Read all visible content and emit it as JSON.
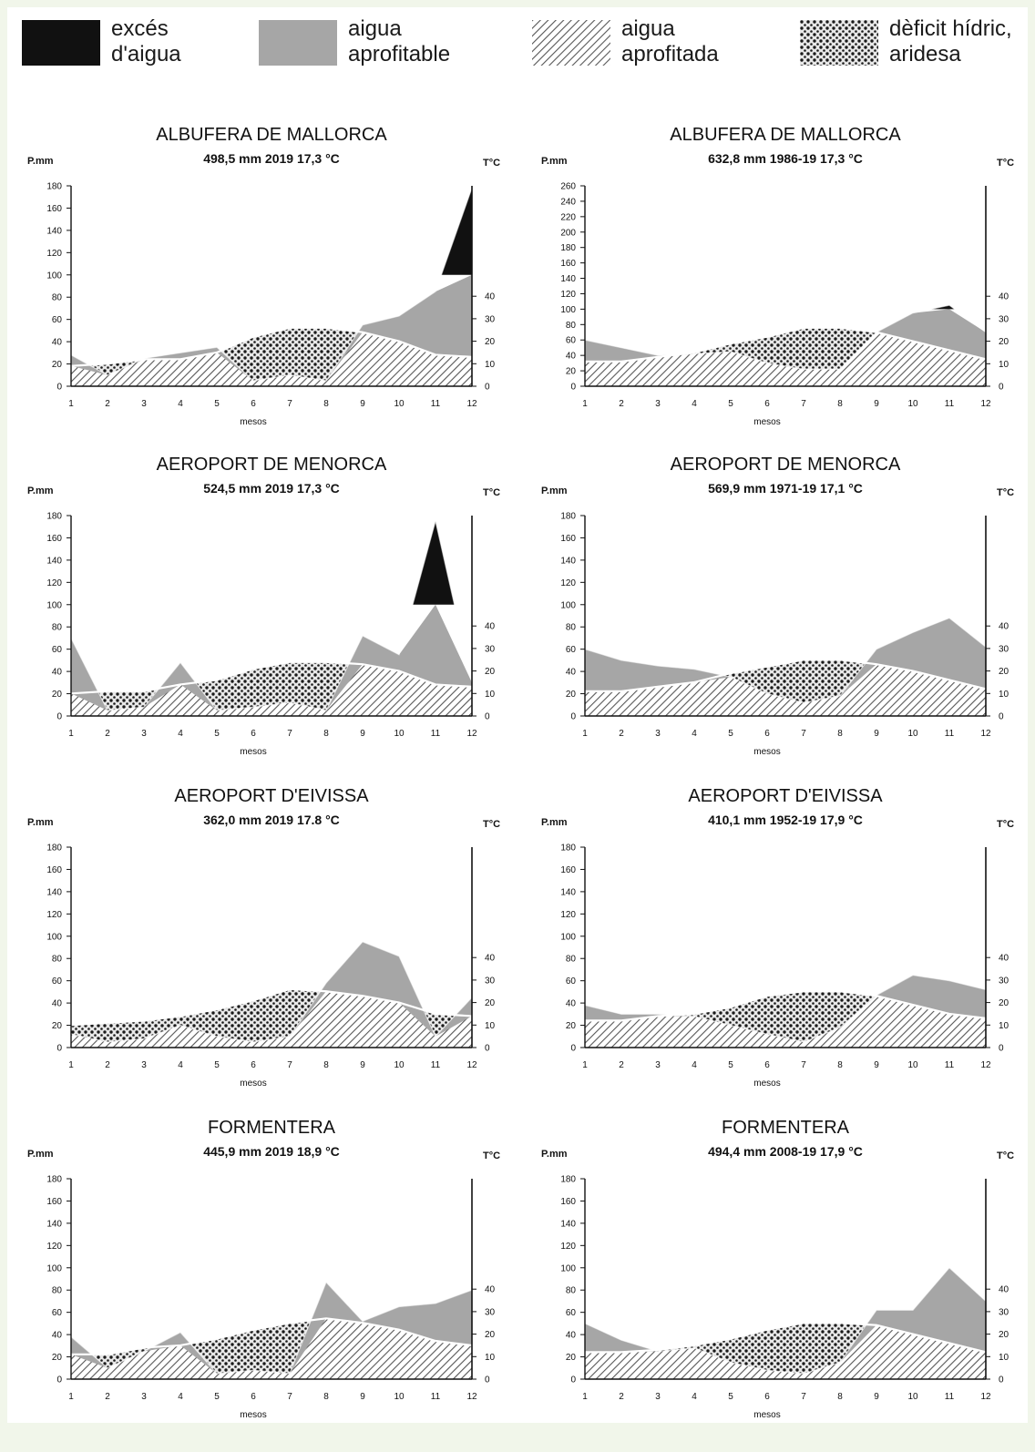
{
  "legend": [
    {
      "id": "exces",
      "line1": "excés",
      "line2": "d'aigua",
      "fill": "#111111"
    },
    {
      "id": "aprofitable",
      "line1": "aigua",
      "line2": "aprofitable",
      "fill": "#a6a6a6"
    },
    {
      "id": "aprofitada",
      "line1": "aigua",
      "line2": "aprofitada",
      "fill": "hatch"
    },
    {
      "id": "deficit",
      "line1": "dèficit hídric,",
      "line2": "aridesa",
      "fill": "dots"
    }
  ],
  "common": {
    "p_label": "P.mm",
    "t_label": "T°C",
    "x_label": "mesos",
    "months": [
      1,
      2,
      3,
      4,
      5,
      6,
      7,
      8,
      9,
      10,
      11,
      12
    ],
    "t_ticks": [
      0,
      10,
      20,
      30,
      40
    ]
  },
  "colors": {
    "exces": "#111111",
    "aprofitable": "#a6a6a6",
    "hatch_line": "#555555",
    "deficit_dot": "#1a1a1a",
    "temperature_line": "#ffffff"
  },
  "chart_data": [
    {
      "type": "area",
      "title": "ALBUFERA DE MALLORCA",
      "subtitle": "498,5 mm 2019  17,3 °C",
      "ylabel": "P.mm",
      "y2label": "T°C",
      "xlabel": "mesos",
      "ylim": [
        0,
        180
      ],
      "yticks": [
        0,
        20,
        40,
        60,
        80,
        100,
        120,
        140,
        160,
        180
      ],
      "series": [
        {
          "name": "P",
          "values": [
            28,
            10,
            25,
            30,
            35,
            5,
            10,
            5,
            55,
            63,
            85,
            178
          ]
        },
        {
          "name": "T",
          "values": [
            9,
            10,
            12,
            12,
            15,
            22,
            26,
            26,
            24,
            20,
            14,
            13
          ]
        }
      ],
      "reserve_max": 100
    },
    {
      "type": "area",
      "title": "ALBUFERA DE MALLORCA",
      "subtitle": "632,8 mm 1986-19  17,3 °C",
      "ylabel": "P.mm",
      "y2label": "T°C",
      "xlabel": "mesos",
      "ylim": [
        0,
        260
      ],
      "yticks": [
        0,
        20,
        40,
        60,
        80,
        100,
        120,
        140,
        160,
        180,
        200,
        220,
        240,
        260
      ],
      "series": [
        {
          "name": "P",
          "values": [
            60,
            50,
            40,
            42,
            45,
            30,
            22,
            22,
            70,
            95,
            105,
            70
          ]
        },
        {
          "name": "T",
          "values": [
            11,
            11,
            13,
            15,
            19,
            22,
            26,
            26,
            24,
            20,
            16,
            12
          ]
        }
      ],
      "reserve_max": 100
    },
    {
      "type": "area",
      "title": "AEROPORT DE MENORCA",
      "subtitle": "524,5 mm 2019  17,3 °C",
      "ylabel": "P.mm",
      "y2label": "T°C",
      "xlabel": "mesos",
      "ylim": [
        0,
        180
      ],
      "yticks": [
        0,
        20,
        40,
        60,
        80,
        100,
        120,
        140,
        160,
        180
      ],
      "series": [
        {
          "name": "P",
          "values": [
            70,
            5,
            8,
            48,
            5,
            8,
            12,
            5,
            72,
            55,
            175,
            30
          ]
        },
        {
          "name": "T",
          "values": [
            10,
            11,
            11,
            14,
            16,
            21,
            24,
            24,
            23,
            20,
            14,
            13
          ]
        }
      ],
      "reserve_max": 100
    },
    {
      "type": "area",
      "title": "AEROPORT DE MENORCA",
      "subtitle": "569,9 mm 1971-19  17,1 °C",
      "ylabel": "P.mm",
      "y2label": "T°C",
      "xlabel": "mesos",
      "ylim": [
        0,
        180
      ],
      "yticks": [
        0,
        20,
        40,
        60,
        80,
        100,
        120,
        140,
        160,
        180
      ],
      "series": [
        {
          "name": "P",
          "values": [
            60,
            50,
            45,
            42,
            35,
            20,
            12,
            18,
            60,
            75,
            88,
            62
          ]
        },
        {
          "name": "T",
          "values": [
            11,
            11,
            13,
            15,
            19,
            22,
            25,
            25,
            23,
            20,
            16,
            12
          ]
        }
      ],
      "reserve_max": 100
    },
    {
      "type": "area",
      "title": "AEROPORT D'EIVISSA",
      "subtitle": "362,0 mm  2019  17.8 °C",
      "ylabel": "P.mm",
      "y2label": "T°C",
      "xlabel": "mesos",
      "ylim": [
        0,
        180
      ],
      "yticks": [
        0,
        20,
        40,
        60,
        80,
        100,
        120,
        140,
        160,
        180
      ],
      "series": [
        {
          "name": "P",
          "values": [
            12,
            5,
            8,
            20,
            10,
            5,
            10,
            58,
            95,
            82,
            10,
            45
          ]
        },
        {
          "name": "T",
          "values": [
            10,
            11,
            12,
            14,
            17,
            21,
            26,
            25,
            23,
            20,
            15,
            14
          ]
        }
      ],
      "reserve_max": 100
    },
    {
      "type": "area",
      "title": "AEROPORT D'EIVISSA",
      "subtitle": "410,1 mm 1952-19  17,9 °C",
      "ylabel": "P.mm",
      "y2label": "T°C",
      "xlabel": "mesos",
      "ylim": [
        0,
        180
      ],
      "yticks": [
        0,
        20,
        40,
        60,
        80,
        100,
        120,
        140,
        160,
        180
      ],
      "series": [
        {
          "name": "P",
          "values": [
            38,
            30,
            30,
            28,
            20,
            12,
            5,
            18,
            47,
            65,
            60,
            52
          ]
        },
        {
          "name": "T",
          "values": [
            12,
            12,
            14,
            15,
            18,
            23,
            25,
            25,
            23,
            19,
            15,
            13
          ]
        }
      ],
      "reserve_max": 100
    },
    {
      "type": "area",
      "title": "FORMENTERA",
      "subtitle": "445,9 mm 2019  18,9 °C",
      "ylabel": "P.mm",
      "y2label": "T°C",
      "xlabel": "mesos",
      "ylim": [
        0,
        180
      ],
      "yticks": [
        0,
        20,
        40,
        60,
        80,
        100,
        120,
        140,
        160,
        180
      ],
      "series": [
        {
          "name": "P",
          "values": [
            38,
            10,
            25,
            42,
            5,
            8,
            5,
            87,
            52,
            65,
            68,
            80
          ]
        },
        {
          "name": "T",
          "values": [
            11,
            11,
            14,
            15,
            18,
            22,
            25,
            27,
            25,
            22,
            17,
            15
          ]
        }
      ],
      "reserve_max": 100
    },
    {
      "type": "area",
      "title": "FORMENTERA",
      "subtitle": "494,4 mm 2008-19  17,9 °C",
      "ylabel": "P.mm",
      "y2label": "T°C",
      "xlabel": "mesos",
      "ylim": [
        0,
        180
      ],
      "yticks": [
        0,
        20,
        40,
        60,
        80,
        100,
        120,
        140,
        160,
        180
      ],
      "series": [
        {
          "name": "P",
          "values": [
            50,
            35,
            25,
            28,
            15,
            8,
            5,
            15,
            62,
            62,
            100,
            70
          ]
        },
        {
          "name": "T",
          "values": [
            12,
            12,
            13,
            15,
            18,
            22,
            25,
            25,
            24,
            20,
            16,
            12
          ]
        }
      ],
      "reserve_max": 100
    }
  ]
}
